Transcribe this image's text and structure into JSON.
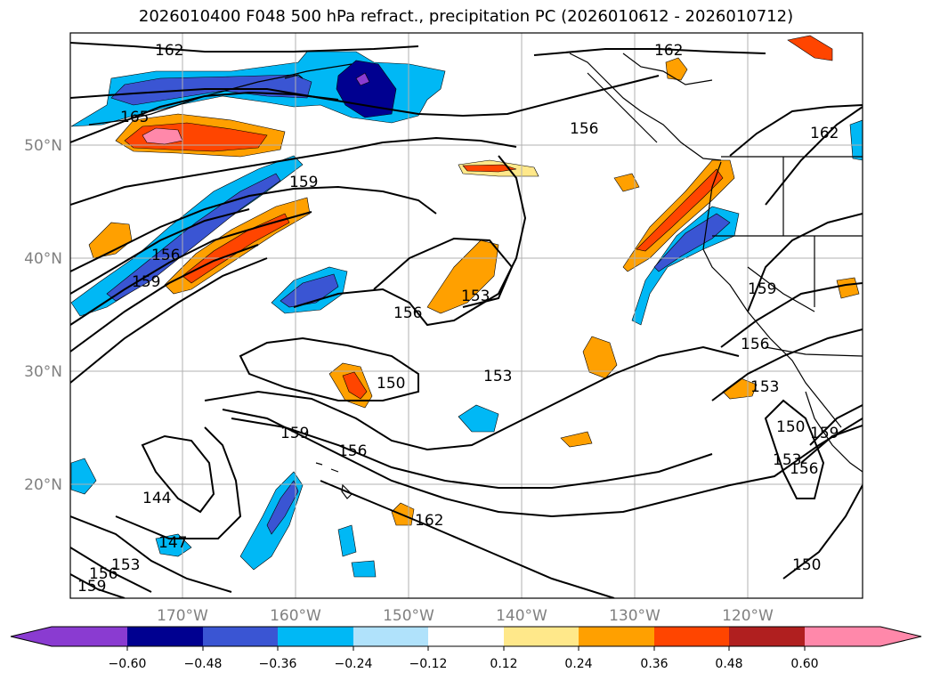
{
  "title": "2026010400 F048 500 hPa refract., precipitation PC (2026010612 - 2026010712)",
  "lat_labels": [
    "50°N",
    "40°N",
    "30°N",
    "20°N"
  ],
  "lon_labels": [
    "170°W",
    "160°W",
    "150°W",
    "140°W",
    "130°W",
    "120°W"
  ],
  "contour_labels": [
    "162",
    "165",
    "159",
    "156",
    "159",
    "156",
    "153",
    "150",
    "153",
    "162",
    "156",
    "159",
    "156",
    "153",
    "150",
    "153",
    "156",
    "159",
    "144",
    "147",
    "153",
    "156",
    "159",
    "162",
    "150"
  ],
  "colorbar": {
    "ticks": [
      "−0.60",
      "−0.48",
      "−0.36",
      "−0.24",
      "−0.12",
      "0.12",
      "0.24",
      "0.36",
      "0.48",
      "0.60"
    ],
    "colors": [
      "#8a3bd1",
      "#000090",
      "#3a55d3",
      "#00b8f5",
      "#b0e2fb",
      "#ffffff",
      "#ffe88a",
      "#ffa000",
      "#ff4500",
      "#b01f1f",
      "#ff88aa"
    ]
  },
  "colors": {
    "neg_extreme": "#8a3bd1",
    "neg_48": "#000090",
    "neg_36": "#3a55d3",
    "neg_24": "#00b8f5",
    "neg_12": "#b0e2fb",
    "pos_12": "#ffe88a",
    "pos_24": "#ffa000",
    "pos_36": "#ff4500",
    "pos_48": "#b01f1f",
    "pos_extreme": "#ff88aa"
  }
}
